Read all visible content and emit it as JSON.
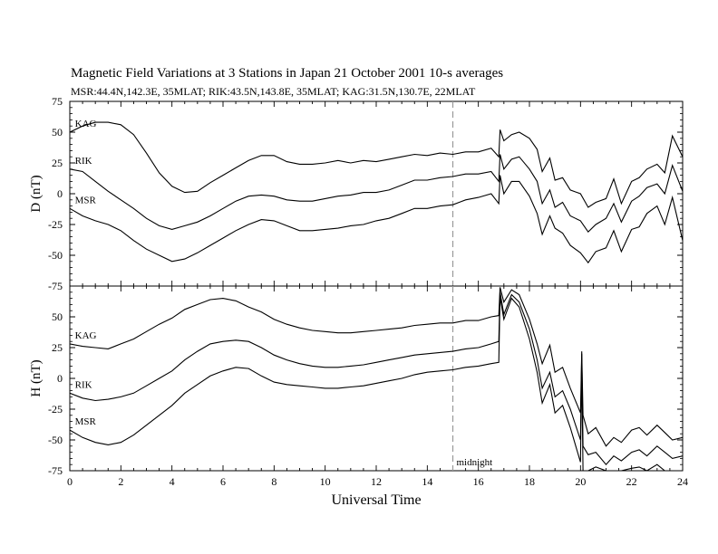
{
  "header": {
    "title": "Magnetic Field Variations at 3 Stations in Japan        21 October 2001      10-s averages",
    "subtitle": "MSR:44.4N,142.3E, 35MLAT;   RIK:43.5N,143.8E, 35MLAT;   KAG:31.5N,130.7E, 22MLAT"
  },
  "chart_data": [
    {
      "type": "line",
      "panel": "top",
      "ylabel": "D (nT)",
      "ylim": [
        -75,
        75
      ],
      "yticks": [
        75,
        50,
        25,
        0,
        -25,
        -50,
        -75
      ],
      "xlim": [
        0,
        24
      ],
      "midnight_marker_x": 15,
      "series": [
        {
          "name": "KAG",
          "x": [
            0,
            0.5,
            1,
            1.5,
            2,
            2.5,
            3,
            3.5,
            4,
            4.5,
            5,
            5.5,
            6,
            6.5,
            7,
            7.5,
            8,
            8.5,
            9,
            9.5,
            10,
            10.5,
            11,
            11.5,
            12,
            12.5,
            13,
            13.5,
            14,
            14.5,
            15,
            15.5,
            16,
            16.5,
            16.8,
            16.85,
            17,
            17.3,
            17.6,
            18,
            18.3,
            18.5,
            18.8,
            19,
            19.3,
            19.6,
            20,
            20.3,
            20.6,
            21,
            21.3,
            21.6,
            22,
            22.3,
            22.6,
            23,
            23.3,
            23.6,
            24
          ],
          "y": [
            50,
            55,
            58,
            58,
            56,
            48,
            33,
            17,
            6,
            1,
            2,
            9,
            15,
            21,
            27,
            31,
            31,
            26,
            24,
            24,
            25,
            27,
            25,
            27,
            26,
            28,
            30,
            32,
            31,
            33,
            32,
            34,
            34,
            37,
            30,
            52,
            43,
            48,
            50,
            45,
            36,
            18,
            29,
            11,
            13,
            3,
            0,
            -11,
            -7,
            -4,
            12,
            -8,
            10,
            13,
            20,
            24,
            17,
            47,
            30
          ]
        },
        {
          "name": "RIK",
          "x": [
            0,
            0.5,
            1,
            1.5,
            2,
            2.5,
            3,
            3.5,
            4,
            4.5,
            5,
            5.5,
            6,
            6.5,
            7,
            7.5,
            8,
            8.5,
            9,
            9.5,
            10,
            10.5,
            11,
            11.5,
            12,
            12.5,
            13,
            13.5,
            14,
            14.5,
            15,
            15.5,
            16,
            16.5,
            16.8,
            16.85,
            17,
            17.3,
            17.6,
            18,
            18.3,
            18.5,
            18.8,
            19,
            19.3,
            19.6,
            20,
            20.3,
            20.6,
            21,
            21.3,
            21.6,
            22,
            22.3,
            22.6,
            23,
            23.3,
            23.6,
            24
          ],
          "y": [
            20,
            18,
            10,
            2,
            -5,
            -12,
            -20,
            -26,
            -29,
            -26,
            -23,
            -18,
            -12,
            -6,
            -2,
            -1,
            -2,
            -5,
            -6,
            -6,
            -4,
            -2,
            -1,
            1,
            1,
            3,
            7,
            11,
            11,
            13,
            14,
            16,
            16,
            18,
            10,
            32,
            20,
            28,
            30,
            20,
            10,
            -8,
            3,
            -11,
            -7,
            -18,
            -22,
            -31,
            -25,
            -20,
            -8,
            -23,
            -6,
            -2,
            5,
            8,
            0,
            23,
            2
          ]
        },
        {
          "name": "MSR",
          "x": [
            0,
            0.5,
            1,
            1.5,
            2,
            2.5,
            3,
            3.5,
            4,
            4.5,
            5,
            5.5,
            6,
            6.5,
            7,
            7.5,
            8,
            8.5,
            9,
            9.5,
            10,
            10.5,
            11,
            11.5,
            12,
            12.5,
            13,
            13.5,
            14,
            14.5,
            15,
            15.5,
            16,
            16.5,
            16.8,
            16.85,
            17,
            17.3,
            17.6,
            18,
            18.3,
            18.5,
            18.8,
            19,
            19.3,
            19.6,
            20,
            20.3,
            20.6,
            21,
            21.3,
            21.6,
            22,
            22.3,
            22.6,
            23,
            23.3,
            23.6,
            24
          ],
          "y": [
            -12,
            -18,
            -22,
            -25,
            -30,
            -38,
            -45,
            -50,
            -55,
            -53,
            -48,
            -42,
            -36,
            -30,
            -25,
            -21,
            -22,
            -26,
            -30,
            -30,
            -29,
            -28,
            -26,
            -25,
            -22,
            -20,
            -16,
            -12,
            -12,
            -10,
            -9,
            -5,
            -3,
            0,
            -8,
            15,
            0,
            10,
            10,
            -2,
            -16,
            -33,
            -18,
            -28,
            -32,
            -42,
            -48,
            -56,
            -47,
            -44,
            -30,
            -47,
            -29,
            -27,
            -16,
            -10,
            -25,
            -3,
            -38
          ]
        }
      ]
    },
    {
      "type": "line",
      "panel": "bottom",
      "ylabel": "H (nT)",
      "xlabel": "Universal Time",
      "ylim": [
        -75,
        75
      ],
      "yticks": [
        50,
        25,
        0,
        -25,
        -50,
        -75
      ],
      "xlim": [
        0,
        24
      ],
      "xticks": [
        0,
        2,
        4,
        6,
        8,
        10,
        12,
        14,
        16,
        18,
        20,
        22,
        24
      ],
      "midnight_marker_x": 15,
      "annotation": "midnight",
      "series": [
        {
          "name": "KAG",
          "x": [
            0,
            0.5,
            1,
            1.5,
            2,
            2.5,
            3,
            3.5,
            4,
            4.5,
            5,
            5.5,
            6,
            6.5,
            7,
            7.5,
            8,
            8.5,
            9,
            9.5,
            10,
            10.5,
            11,
            11.5,
            12,
            12.5,
            13,
            13.5,
            14,
            14.5,
            15,
            15.5,
            16,
            16.5,
            16.8,
            16.85,
            17,
            17.3,
            17.6,
            18,
            18.3,
            18.5,
            18.8,
            19,
            19.3,
            19.6,
            20,
            20.05,
            20.1,
            20.3,
            20.6,
            21,
            21.3,
            21.6,
            22,
            22.3,
            22.6,
            23,
            23.3,
            23.6,
            24
          ],
          "y": [
            28,
            26,
            25,
            24,
            28,
            32,
            38,
            44,
            49,
            56,
            60,
            64,
            65,
            63,
            58,
            54,
            48,
            44,
            41,
            39,
            38,
            37,
            37,
            38,
            39,
            40,
            41,
            43,
            44,
            45,
            45,
            47,
            47,
            50,
            51,
            74,
            62,
            72,
            68,
            48,
            28,
            12,
            27,
            5,
            9,
            -8,
            -28,
            22,
            -30,
            -45,
            -40,
            -55,
            -48,
            -52,
            -42,
            -40,
            -46,
            -38,
            -44,
            -50,
            -48
          ]
        },
        {
          "name": "RIK",
          "x": [
            0,
            0.5,
            1,
            1.5,
            2,
            2.5,
            3,
            3.5,
            4,
            4.5,
            5,
            5.5,
            6,
            6.5,
            7,
            7.5,
            8,
            8.5,
            9,
            9.5,
            10,
            10.5,
            11,
            11.5,
            12,
            12.5,
            13,
            13.5,
            14,
            14.5,
            15,
            15.5,
            16,
            16.5,
            16.8,
            16.85,
            17,
            17.3,
            17.6,
            18,
            18.3,
            18.5,
            18.8,
            19,
            19.3,
            19.6,
            20,
            20.05,
            20.1,
            20.3,
            20.6,
            21,
            21.3,
            21.6,
            22,
            22.3,
            22.6,
            23,
            23.3,
            23.6,
            24
          ],
          "y": [
            -12,
            -16,
            -18,
            -17,
            -15,
            -12,
            -6,
            0,
            6,
            15,
            22,
            28,
            30,
            31,
            30,
            25,
            19,
            15,
            12,
            10,
            9,
            9,
            10,
            11,
            13,
            15,
            17,
            19,
            20,
            21,
            22,
            24,
            25,
            28,
            30,
            70,
            52,
            68,
            62,
            40,
            15,
            -8,
            5,
            -15,
            -10,
            -25,
            -50,
            20,
            -55,
            -62,
            -60,
            -70,
            -63,
            -67,
            -60,
            -58,
            -63,
            -55,
            -60,
            -65,
            -63
          ]
        },
        {
          "name": "MSR",
          "x": [
            0,
            0.5,
            1,
            1.5,
            2,
            2.5,
            3,
            3.5,
            4,
            4.5,
            5,
            5.5,
            6,
            6.5,
            7,
            7.5,
            8,
            8.5,
            9,
            9.5,
            10,
            10.5,
            11,
            11.5,
            12,
            12.5,
            13,
            13.5,
            14,
            14.5,
            15,
            15.5,
            16,
            16.5,
            16.8,
            16.85,
            17,
            17.3,
            17.6,
            18,
            18.3,
            18.5,
            18.8,
            19,
            19.3,
            19.6,
            20,
            20.05,
            20.1,
            20.3,
            20.6,
            21,
            21.3,
            21.6,
            22,
            22.3,
            22.6,
            23,
            23.3,
            23.6,
            24
          ],
          "y": [
            -42,
            -48,
            -52,
            -54,
            -52,
            -46,
            -38,
            -30,
            -22,
            -12,
            -5,
            2,
            6,
            9,
            8,
            2,
            -3,
            -5,
            -6,
            -7,
            -8,
            -8,
            -7,
            -6,
            -4,
            -2,
            0,
            3,
            5,
            6,
            7,
            9,
            10,
            12,
            13,
            66,
            48,
            65,
            58,
            32,
            5,
            -20,
            -5,
            -28,
            -22,
            -40,
            -68,
            12,
            -75,
            -75,
            -72,
            -75,
            -75,
            -75,
            -73,
            -72,
            -75,
            -70,
            -75,
            -75,
            -75
          ]
        }
      ]
    }
  ]
}
